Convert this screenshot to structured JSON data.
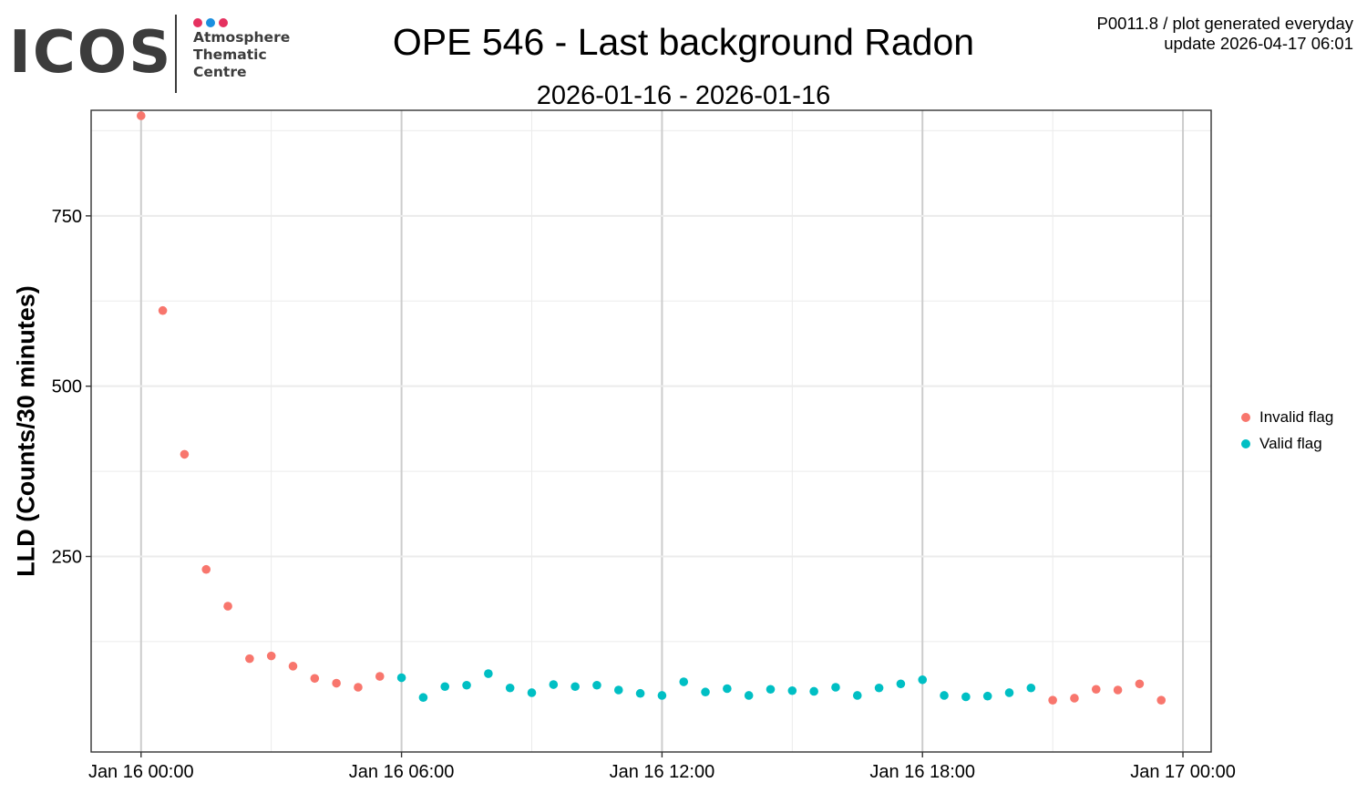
{
  "header": {
    "logo": {
      "wordmark": "ICOS",
      "subtitle_lines": [
        "Atmosphere",
        "Thematic",
        "Centre"
      ],
      "dot_colors": [
        "#e5315f",
        "#1a8fdf",
        "#e5315f"
      ]
    },
    "meta_line1": "P0011.8 / plot generated everyday",
    "meta_line2": "update  2026-04-17 06:01"
  },
  "chart_data": {
    "type": "scatter",
    "title": "OPE 546 - Last background Radon",
    "subtitle": "2026-01-16 - 2026-01-16",
    "xlabel": "",
    "ylabel": "LLD (Counts/30 minutes)",
    "x_ticks": [
      {
        "label": "Jan 16 00:00",
        "hour": 0
      },
      {
        "label": "Jan 16 06:00",
        "hour": 6
      },
      {
        "label": "Jan 16 12:00",
        "hour": 12
      },
      {
        "label": "Jan 16 18:00",
        "hour": 18
      },
      {
        "label": "Jan 17 00:00",
        "hour": 24
      }
    ],
    "x_minor_hours": [
      3,
      9,
      15,
      21
    ],
    "xlim_hours": [
      -1.15,
      24.65
    ],
    "y_ticks": [
      250,
      500,
      750
    ],
    "y_minor": [
      125,
      375,
      625,
      875
    ],
    "ylim": [
      -37,
      905
    ],
    "grid": true,
    "legend_position": "right",
    "series": [
      {
        "name": "Invalid flag",
        "color": "#f8766d",
        "points": [
          {
            "hour": 0.0,
            "y": 897
          },
          {
            "hour": 0.5,
            "y": 611
          },
          {
            "hour": 1.0,
            "y": 400
          },
          {
            "hour": 1.5,
            "y": 231
          },
          {
            "hour": 2.0,
            "y": 177
          },
          {
            "hour": 2.5,
            "y": 100
          },
          {
            "hour": 3.0,
            "y": 104
          },
          {
            "hour": 3.5,
            "y": 89
          },
          {
            "hour": 4.0,
            "y": 71
          },
          {
            "hour": 4.5,
            "y": 64
          },
          {
            "hour": 5.0,
            "y": 58
          },
          {
            "hour": 5.5,
            "y": 74
          },
          {
            "hour": 21.0,
            "y": 39
          },
          {
            "hour": 21.5,
            "y": 42
          },
          {
            "hour": 22.0,
            "y": 55
          },
          {
            "hour": 22.5,
            "y": 54
          },
          {
            "hour": 23.0,
            "y": 63
          },
          {
            "hour": 23.5,
            "y": 39
          }
        ]
      },
      {
        "name": "Valid flag",
        "color": "#00bfc4",
        "points": [
          {
            "hour": 6.0,
            "y": 72
          },
          {
            "hour": 6.5,
            "y": 43
          },
          {
            "hour": 7.0,
            "y": 59
          },
          {
            "hour": 7.5,
            "y": 61
          },
          {
            "hour": 8.0,
            "y": 78
          },
          {
            "hour": 8.5,
            "y": 57
          },
          {
            "hour": 9.0,
            "y": 50
          },
          {
            "hour": 9.5,
            "y": 62
          },
          {
            "hour": 10.0,
            "y": 59
          },
          {
            "hour": 10.5,
            "y": 61
          },
          {
            "hour": 11.0,
            "y": 54
          },
          {
            "hour": 11.5,
            "y": 49
          },
          {
            "hour": 12.0,
            "y": 46
          },
          {
            "hour": 12.5,
            "y": 66
          },
          {
            "hour": 13.0,
            "y": 51
          },
          {
            "hour": 13.5,
            "y": 56
          },
          {
            "hour": 14.0,
            "y": 46
          },
          {
            "hour": 14.5,
            "y": 55
          },
          {
            "hour": 15.0,
            "y": 53
          },
          {
            "hour": 15.5,
            "y": 52
          },
          {
            "hour": 16.0,
            "y": 58
          },
          {
            "hour": 16.5,
            "y": 46
          },
          {
            "hour": 17.0,
            "y": 57
          },
          {
            "hour": 17.5,
            "y": 63
          },
          {
            "hour": 18.0,
            "y": 69
          },
          {
            "hour": 18.5,
            "y": 46
          },
          {
            "hour": 19.0,
            "y": 44
          },
          {
            "hour": 19.5,
            "y": 45
          },
          {
            "hour": 20.0,
            "y": 50
          },
          {
            "hour": 20.5,
            "y": 57
          }
        ]
      }
    ]
  }
}
